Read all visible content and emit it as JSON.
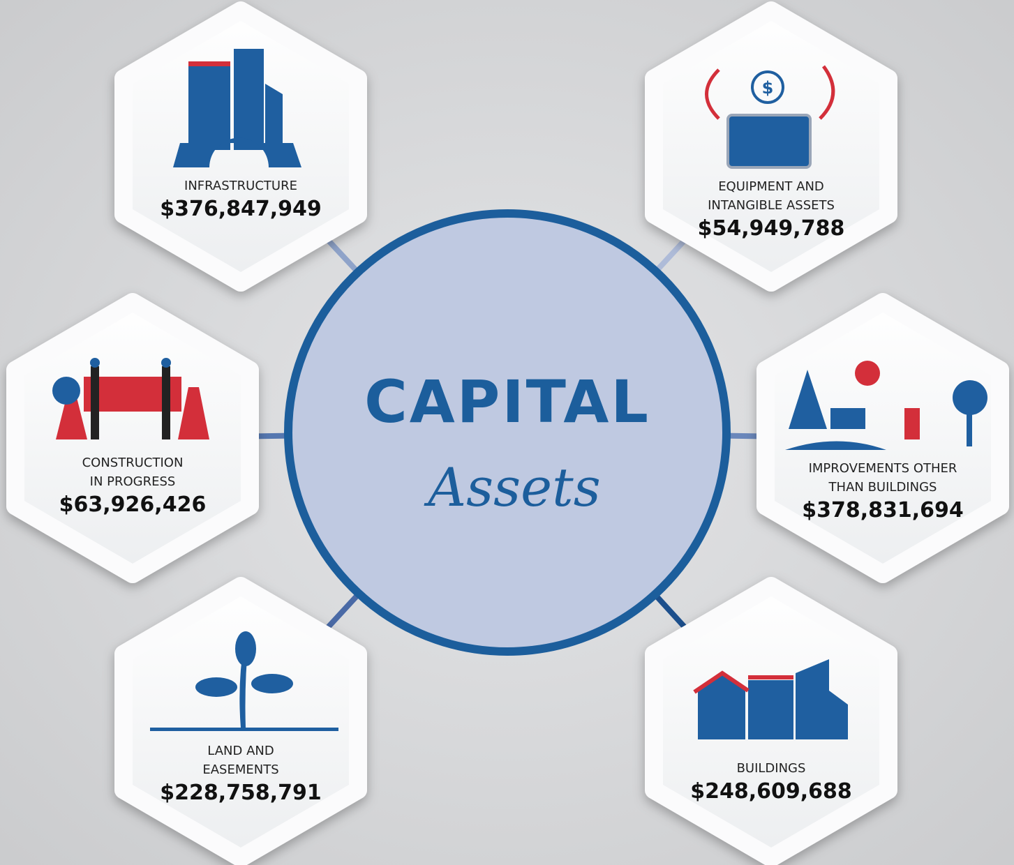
{
  "center": {
    "title": "CAPITAL",
    "subtitle": "Assets"
  },
  "nodes": [
    {
      "label": [
        "INFRASTRUCTURE"
      ],
      "amount": "$376,847,949"
    },
    {
      "label": [
        "EQUIPMENT AND",
        "INTANGIBLE ASSETS"
      ],
      "amount": "$54,949,788"
    },
    {
      "label": [
        "CONSTRUCTION",
        "IN PROGRESS"
      ],
      "amount": "$63,926,426"
    },
    {
      "label": [
        "IMPROVEMENTS OTHER",
        "THAN BUILDINGS"
      ],
      "amount": "$378,831,694"
    },
    {
      "label": [
        "LAND AND",
        "EASEMENTS"
      ],
      "amount": "$228,758,791"
    },
    {
      "label": [
        "BUILDINGS"
      ],
      "amount": "$248,609,688"
    }
  ]
}
